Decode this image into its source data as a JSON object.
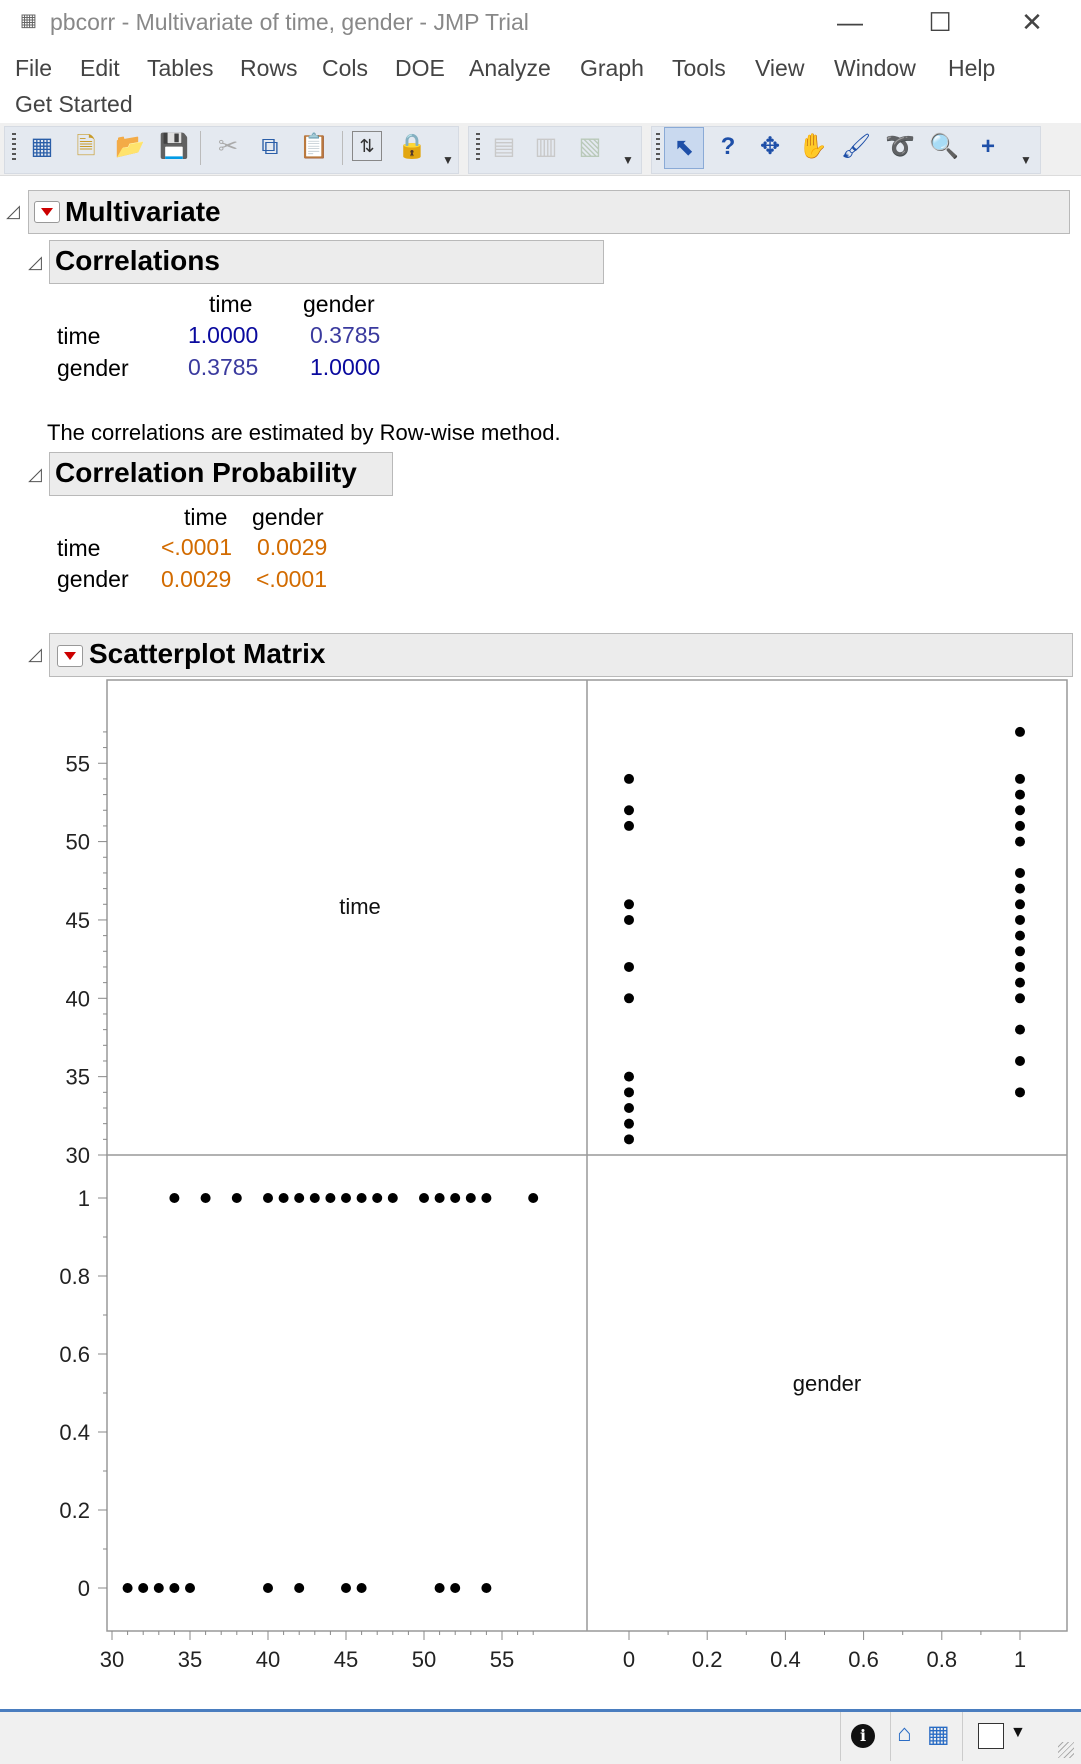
{
  "window": {
    "title": "pbcorr - Multivariate of time, gender - JMP Trial",
    "app_icon": "table-grid-icon",
    "minimize_glyph": "—",
    "maximize_glyph": "☐",
    "close_glyph": "✕"
  },
  "menu": {
    "items": [
      "File",
      "Edit",
      "Tables",
      "Rows",
      "Cols",
      "DOE",
      "Analyze",
      "Graph",
      "Tools",
      "View",
      "Window",
      "Help"
    ],
    "second_row": "Get Started"
  },
  "toolbar": {
    "icons": [
      "new-data-table-icon",
      "new-script-icon",
      "open-icon",
      "save-icon",
      "cut-icon",
      "copy-icon",
      "paste-icon",
      "data-view-icon",
      "lock-icon",
      "redo-icon",
      "chart-icon",
      "graph-builder-icon",
      "arrow-tool-icon",
      "help-tool-icon",
      "crosshair-tool-icon",
      "grabber-tool-icon",
      "brush-tool-icon",
      "lasso-tool-icon",
      "magnifier-tool-icon",
      "annotate-tool-icon"
    ]
  },
  "report": {
    "multivariate_title": "Multivariate",
    "correlations": {
      "title": "Correlations",
      "columns": [
        "time",
        "gender"
      ],
      "rows": [
        {
          "label": "time",
          "values": [
            "1.0000",
            "0.3785"
          ]
        },
        {
          "label": "gender",
          "values": [
            "0.3785",
            "1.0000"
          ]
        }
      ],
      "note": "The correlations are estimated by Row-wise method."
    },
    "probability": {
      "title": "Correlation Probability",
      "columns": [
        "time",
        "gender"
      ],
      "rows": [
        {
          "label": "time",
          "values": [
            "<.0001",
            "0.0029"
          ]
        },
        {
          "label": "gender",
          "values": [
            "0.0029",
            "<.0001"
          ]
        }
      ]
    },
    "scatter_title": "Scatterplot Matrix"
  },
  "chart_data": {
    "type": "scatter",
    "variables": [
      "time",
      "gender"
    ],
    "time_axis": {
      "ylim": [
        30,
        58
      ],
      "ticks": [
        "30",
        "35",
        "40",
        "45",
        "50",
        "55"
      ]
    },
    "gender_axis": {
      "lim": [
        -0.04,
        1.08
      ],
      "ticks": [
        "0",
        "0.2",
        "0.4",
        "0.6",
        "0.8",
        "1"
      ]
    },
    "x_ticks_time": [
      "30",
      "35",
      "40",
      "45",
      "50",
      "55"
    ],
    "x_ticks_gender": [
      "0",
      "0.2",
      "0.4",
      "0.6",
      "0.8",
      "1"
    ],
    "diag_labels": [
      "time",
      "gender"
    ],
    "points": [
      {
        "time": 31,
        "gender": 0
      },
      {
        "time": 32,
        "gender": 0
      },
      {
        "time": 33,
        "gender": 0
      },
      {
        "time": 34,
        "gender": 0
      },
      {
        "time": 35,
        "gender": 0
      },
      {
        "time": 40,
        "gender": 0
      },
      {
        "time": 42,
        "gender": 0
      },
      {
        "time": 45,
        "gender": 0
      },
      {
        "time": 46,
        "gender": 0
      },
      {
        "time": 51,
        "gender": 0
      },
      {
        "time": 52,
        "gender": 0
      },
      {
        "time": 54,
        "gender": 0
      },
      {
        "time": 34,
        "gender": 1
      },
      {
        "time": 36,
        "gender": 1
      },
      {
        "time": 38,
        "gender": 1
      },
      {
        "time": 40,
        "gender": 1
      },
      {
        "time": 41,
        "gender": 1
      },
      {
        "time": 42,
        "gender": 1
      },
      {
        "time": 43,
        "gender": 1
      },
      {
        "time": 44,
        "gender": 1
      },
      {
        "time": 45,
        "gender": 1
      },
      {
        "time": 46,
        "gender": 1
      },
      {
        "time": 47,
        "gender": 1
      },
      {
        "time": 48,
        "gender": 1
      },
      {
        "time": 50,
        "gender": 1
      },
      {
        "time": 51,
        "gender": 1
      },
      {
        "time": 52,
        "gender": 1
      },
      {
        "time": 53,
        "gender": 1
      },
      {
        "time": 54,
        "gender": 1
      },
      {
        "time": 57,
        "gender": 1
      }
    ]
  },
  "statusbar": {
    "icons": [
      "info-icon",
      "home-icon",
      "window-list-icon",
      "blank-square-icon",
      "dropdown-arrow-icon"
    ]
  }
}
